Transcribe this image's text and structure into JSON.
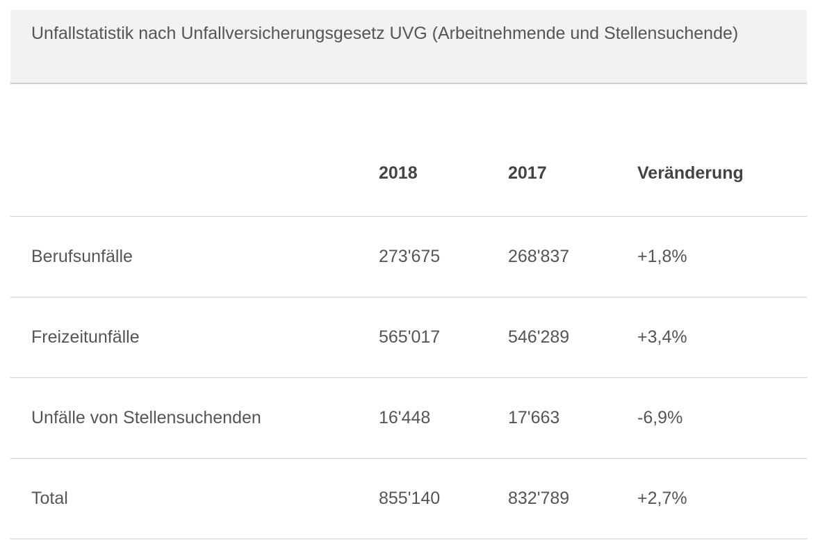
{
  "table": {
    "caption": "Unfallstatistik nach Unfallversicherungsgesetz UVG (Arbeitnehmende und Stellensuchende)",
    "headers": [
      "",
      "2018",
      "2017",
      "Veränderung"
    ],
    "rows": [
      {
        "label": "Berufsunfälle",
        "y2018": "273'675",
        "y2017": "268'837",
        "change": "+1,8%"
      },
      {
        "label": "Freizeitunfälle",
        "y2018": "565'017",
        "y2017": "546'289",
        "change": "+3,4%"
      },
      {
        "label": "Unfälle von Stellensuchenden",
        "y2018": "16'448",
        "y2017": "17'663",
        "change": "-6,9%"
      },
      {
        "label": "Total",
        "y2018": "855'140",
        "y2017": "832'789",
        "change": "+2,7%"
      }
    ]
  }
}
